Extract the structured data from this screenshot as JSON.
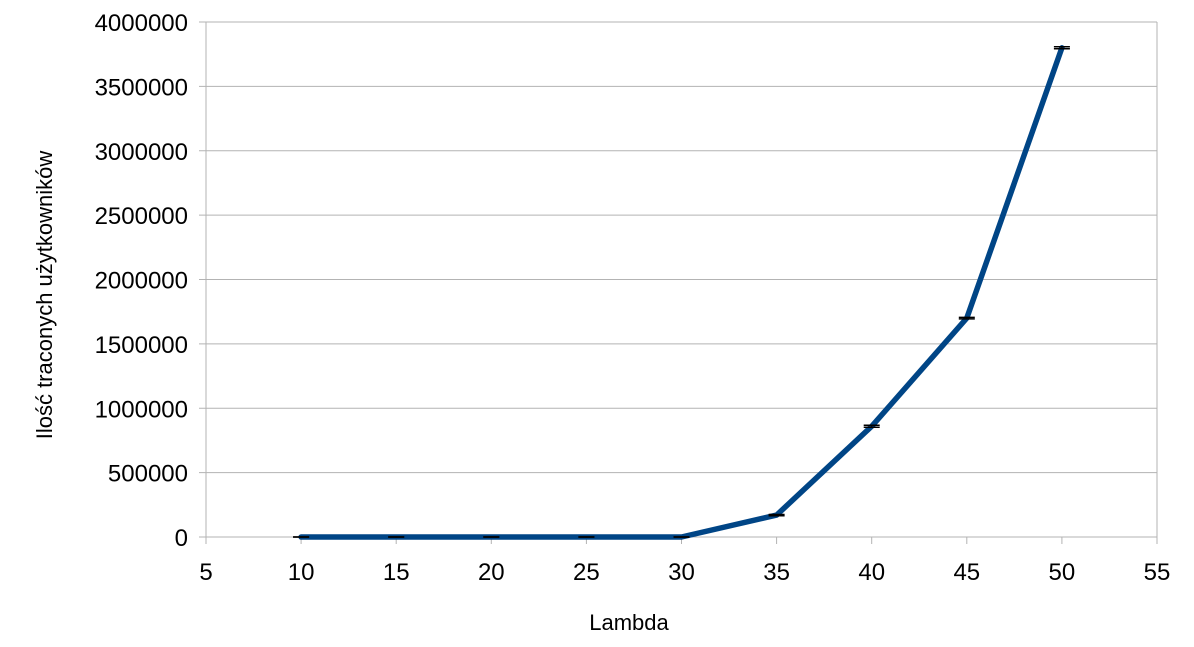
{
  "chart_data": {
    "type": "line",
    "xlabel": "Lambda",
    "ylabel": "Ilość traconych użytkowników",
    "xlim": [
      5,
      55
    ],
    "ylim": [
      0,
      4000000
    ],
    "x_ticks": [
      "5",
      "10",
      "15",
      "20",
      "25",
      "30",
      "35",
      "40",
      "45",
      "50",
      "55"
    ],
    "y_ticks": [
      "0",
      "500000",
      "1000000",
      "1500000",
      "2000000",
      "2500000",
      "3000000",
      "3500000",
      "4000000"
    ],
    "grid": "horizontal",
    "legend": "none",
    "error_bars": true,
    "x": [
      10,
      15,
      20,
      25,
      30,
      35,
      40,
      45,
      50
    ],
    "series": [
      {
        "values": [
          0,
          0,
          0,
          0,
          0,
          170000,
          860000,
          1700000,
          3800000
        ],
        "error": [
          0,
          0,
          0,
          0,
          0,
          5000,
          8000,
          6000,
          8000
        ],
        "color": "#004586"
      }
    ]
  }
}
